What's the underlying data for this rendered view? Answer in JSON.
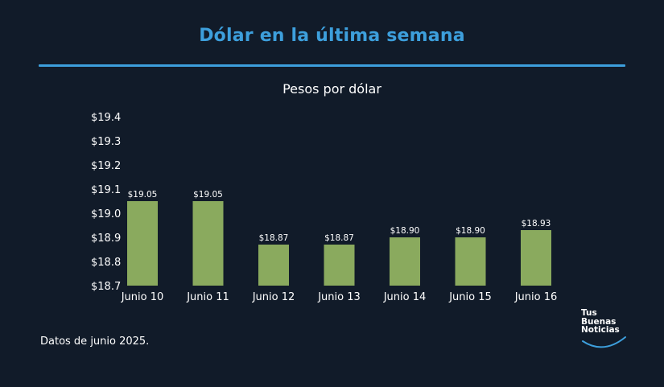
{
  "header": {
    "title": "Dólar en la última semana"
  },
  "chart_data": {
    "type": "bar",
    "title": "Pesos por dólar",
    "categories": [
      "Junio 10",
      "Junio 11",
      "Junio 12",
      "Junio 13",
      "Junio 14",
      "Junio 15",
      "Junio 16"
    ],
    "values": [
      19.05,
      19.05,
      18.87,
      18.87,
      18.9,
      18.9,
      18.93
    ],
    "data_labels": [
      "$19.05",
      "$19.05",
      "$18.87",
      "$18.87",
      "$18.90",
      "$18.90",
      "$18.93"
    ],
    "y_ticks": [
      18.7,
      18.8,
      18.9,
      19.0,
      19.1,
      19.2,
      19.3,
      19.4
    ],
    "y_tick_labels": [
      "$18.7",
      "$18.8",
      "$18.9",
      "$19.0",
      "$19.1",
      "$19.2",
      "$19.3",
      "$19.4"
    ],
    "ylim": [
      18.7,
      19.4
    ],
    "grid": false,
    "bar_color": "#8aaa5e"
  },
  "footer": {
    "note": "Datos de junio 2025.",
    "logo_lines": [
      "Tus",
      "Buenas",
      "Noticias"
    ]
  },
  "colors": {
    "background": "#111b29",
    "accent": "#3d9fdc",
    "bar": "#8aaa5e",
    "text": "#ffffff"
  }
}
